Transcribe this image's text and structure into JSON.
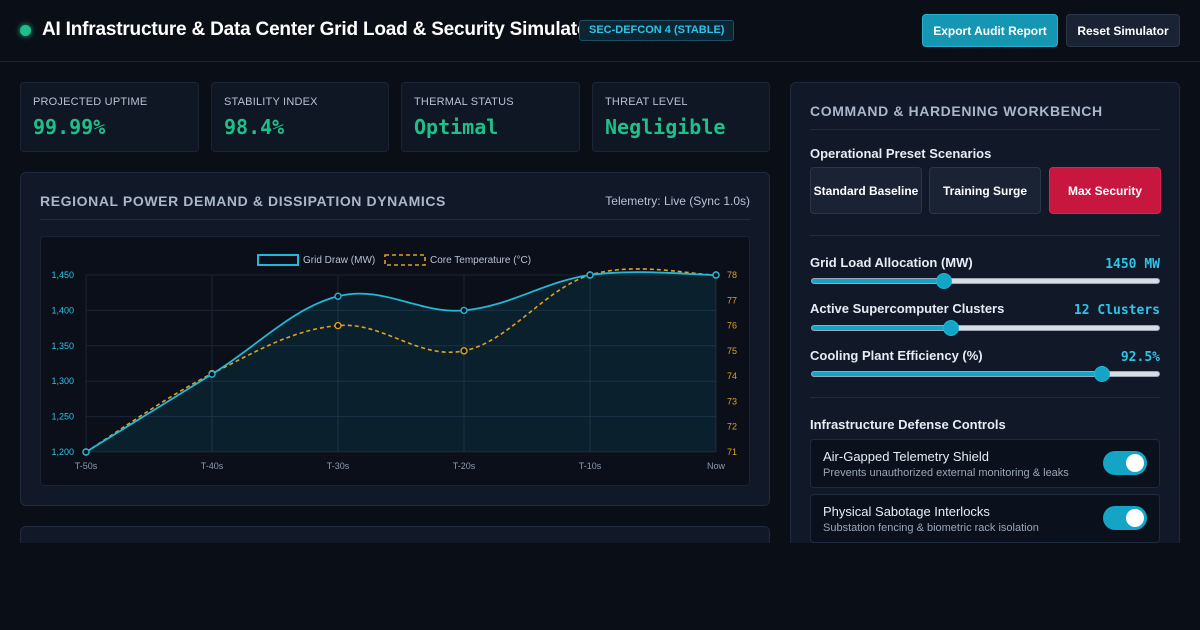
{
  "header": {
    "title": "AI Infrastructure & Data Center Grid Load & Security Simulator",
    "badge": "SEC-DEFCON 4 (STABLE)",
    "export_label": "Export Audit Report",
    "reset_label": "Reset Simulator",
    "status_color": "#1fbf8a"
  },
  "kpis": [
    {
      "label": "Projected Uptime",
      "value": "99.99%"
    },
    {
      "label": "Stability Index",
      "value": "98.4%"
    },
    {
      "label": "Thermal Status",
      "value": "Optimal"
    },
    {
      "label": "Threat Level",
      "value": "Negligible"
    }
  ],
  "chart_panel": {
    "title": "Regional Power Demand & Dissipation Dynamics",
    "telemetry": "Telemetry: Live (Sync 1.0s)"
  },
  "chart_data": {
    "type": "line",
    "x": [
      "T-50s",
      "T-40s",
      "T-30s",
      "T-20s",
      "T-10s",
      "Now"
    ],
    "series": [
      {
        "name": "Grid Draw (MW)",
        "axis": "left",
        "color": "#22b8d6",
        "values": [
          1200,
          1310,
          1420,
          1400,
          1450,
          1450
        ]
      },
      {
        "name": "Core Temperature (°C)",
        "axis": "right",
        "color": "#e0a020",
        "values": [
          71,
          74.1,
          76.0,
          75.0,
          78,
          78
        ]
      }
    ],
    "y_left": {
      "min": 1200,
      "max": 1450,
      "ticks": [
        "1,200",
        "1,250",
        "1,300",
        "1,350",
        "1,400",
        "1,450"
      ]
    },
    "y_right": {
      "min": 71,
      "max": 78,
      "ticks": [
        "71",
        "72",
        "73",
        "74",
        "75",
        "76",
        "77",
        "78"
      ]
    },
    "legend": "top-center",
    "grid": true
  },
  "workbench": {
    "title": "Command & Hardening Workbench",
    "presets_title": "Operational Preset Scenarios",
    "presets": [
      "Standard Baseline",
      "Training Surge",
      "Max Security"
    ],
    "active_preset": "Max Security",
    "sliders": [
      {
        "label": "Grid Load Allocation (MW)",
        "value_text": "1450 MW",
        "fraction": 0.38
      },
      {
        "label": "Active Supercomputer Clusters",
        "value_text": "12 Clusters",
        "fraction": 0.4
      },
      {
        "label": "Cooling Plant Efficiency (%)",
        "value_text": "92.5%",
        "fraction": 0.835
      }
    ],
    "defense_title": "Infrastructure Defense Controls",
    "toggles": [
      {
        "title": "Air-Gapped Telemetry Shield",
        "desc": "Prevents unauthorized external monitoring & leaks",
        "on": true
      },
      {
        "title": "Physical Sabotage Interlocks",
        "desc": "Substation fencing & biometric rack isolation",
        "on": true
      }
    ]
  }
}
